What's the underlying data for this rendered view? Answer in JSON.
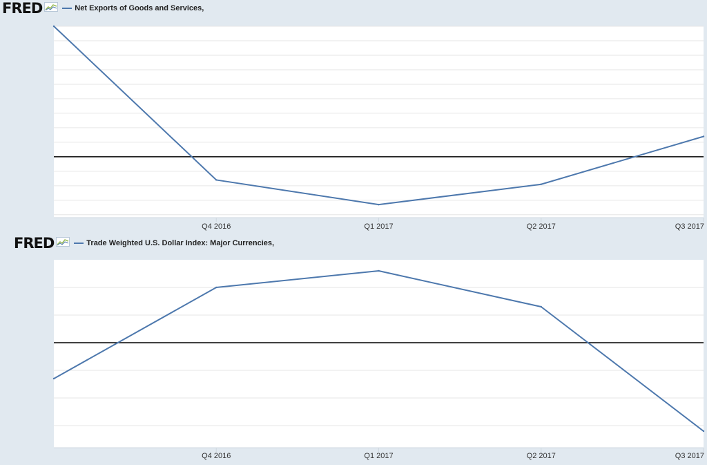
{
  "header_top": {
    "logo": "FRED",
    "logo_icon": "fred-graph-icon",
    "legend_label": "Net Exports of Goods and Services,"
  },
  "header_bottom": {
    "logo": "FRED",
    "logo_icon": "fred-graph-icon",
    "legend_label": "Trade Weighted U.S. Dollar Index: Major Currencies,"
  },
  "colors": {
    "series": "#4d78ad",
    "background": "#e1e9f0",
    "plot_bg": "#ffffff",
    "grid": "#e6e6e6",
    "reference_line": "#000000",
    "logo_accent": "#9bbc58"
  },
  "chart_data": [
    {
      "type": "line",
      "title": "",
      "xlabel": "",
      "ylabel": "",
      "x_tick_labels": [
        "Q4 2016",
        "Q1 2017",
        "Q2 2017",
        "Q3 2017"
      ],
      "x": [
        2016.5,
        2016.75,
        2017.0,
        2017.25,
        2017.5
      ],
      "series": [
        {
          "name": "Net Exports of Goods and Services,",
          "values": [
            9.0,
            -1.6,
            -3.3,
            -1.9,
            1.4
          ]
        }
      ],
      "reference_line": 0,
      "xlim": [
        2016.5,
        2017.5
      ],
      "ylim": [
        -4.2,
        9.0
      ],
      "gridlines_y": [
        -4,
        -3,
        -2,
        -1,
        0,
        1,
        2,
        3,
        4,
        5,
        6,
        7,
        8,
        9
      ],
      "grid": true,
      "y_tick_labels_shown": false
    },
    {
      "type": "line",
      "title": "",
      "xlabel": "",
      "ylabel": "",
      "x_tick_labels": [
        "Q4 2016",
        "Q1 2017",
        "Q2 2017",
        "Q3 2017"
      ],
      "x": [
        2016.5,
        2016.75,
        2017.0,
        2017.25,
        2017.5
      ],
      "series": [
        {
          "name": "Trade Weighted U.S. Dollar Index: Major Currencies,",
          "values": [
            -1.3,
            2.0,
            2.6,
            1.3,
            -3.2
          ]
        }
      ],
      "reference_line": 0,
      "xlim": [
        2016.5,
        2017.5
      ],
      "ylim": [
        -3.8,
        3.0
      ],
      "gridlines_y": [
        -3,
        -2,
        -1,
        0,
        1,
        2
      ],
      "grid": true,
      "y_tick_labels_shown": false
    }
  ]
}
